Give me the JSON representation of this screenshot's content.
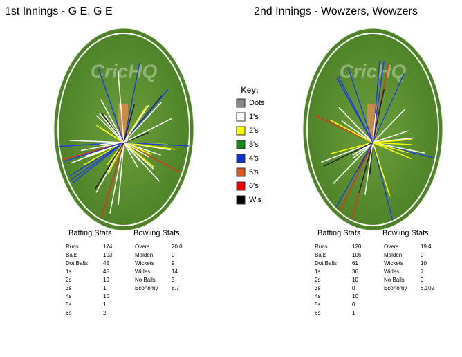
{
  "watermark": "CricHQ",
  "innings": [
    {
      "title": "1st Innings - G E, G E",
      "batting": {
        "title": "Batting Stats",
        "rows": [
          [
            "Runs",
            "174"
          ],
          [
            "Balls",
            "103"
          ],
          [
            "Dot Balls",
            "45"
          ],
          [
            "1s",
            "45"
          ],
          [
            "2s",
            "19"
          ],
          [
            "3s",
            "1"
          ],
          [
            "4s",
            "10"
          ],
          [
            "5s",
            "1"
          ],
          [
            "6s",
            "2"
          ]
        ]
      },
      "bowling": {
        "title": "Bowling Stats",
        "rows": [
          [
            "Overs",
            "20.0"
          ],
          [
            "Malden",
            "0"
          ],
          [
            "Wickets",
            "9"
          ],
          [
            "Wides",
            "14"
          ],
          [
            "No Balls",
            "3"
          ],
          [
            "Economy",
            "8.7"
          ]
        ]
      }
    },
    {
      "title": "2nd Innings - Wowzers, Wowzers",
      "batting": {
        "title": "Batting Stats",
        "rows": [
          [
            "Runs",
            "120"
          ],
          [
            "Balls",
            "106"
          ],
          [
            "Dot Balls",
            "61"
          ],
          [
            "1s",
            "36"
          ],
          [
            "2s",
            "10"
          ],
          [
            "3s",
            "0"
          ],
          [
            "4s",
            "10"
          ],
          [
            "5s",
            "0"
          ],
          [
            "6s",
            "1"
          ]
        ]
      },
      "bowling": {
        "title": "Bowling Stats",
        "rows": [
          [
            "Overs",
            "19.4"
          ],
          [
            "Malden",
            "0"
          ],
          [
            "Wickets",
            "10"
          ],
          [
            "Wides",
            "7"
          ],
          [
            "No Balls",
            "0"
          ],
          [
            "Economy",
            "6.102"
          ]
        ]
      }
    }
  ],
  "key": {
    "title": "Key:",
    "items": [
      "Dots",
      "1's",
      "2's",
      "3's",
      "4's",
      "5's",
      "6's",
      "W's"
    ]
  }
}
